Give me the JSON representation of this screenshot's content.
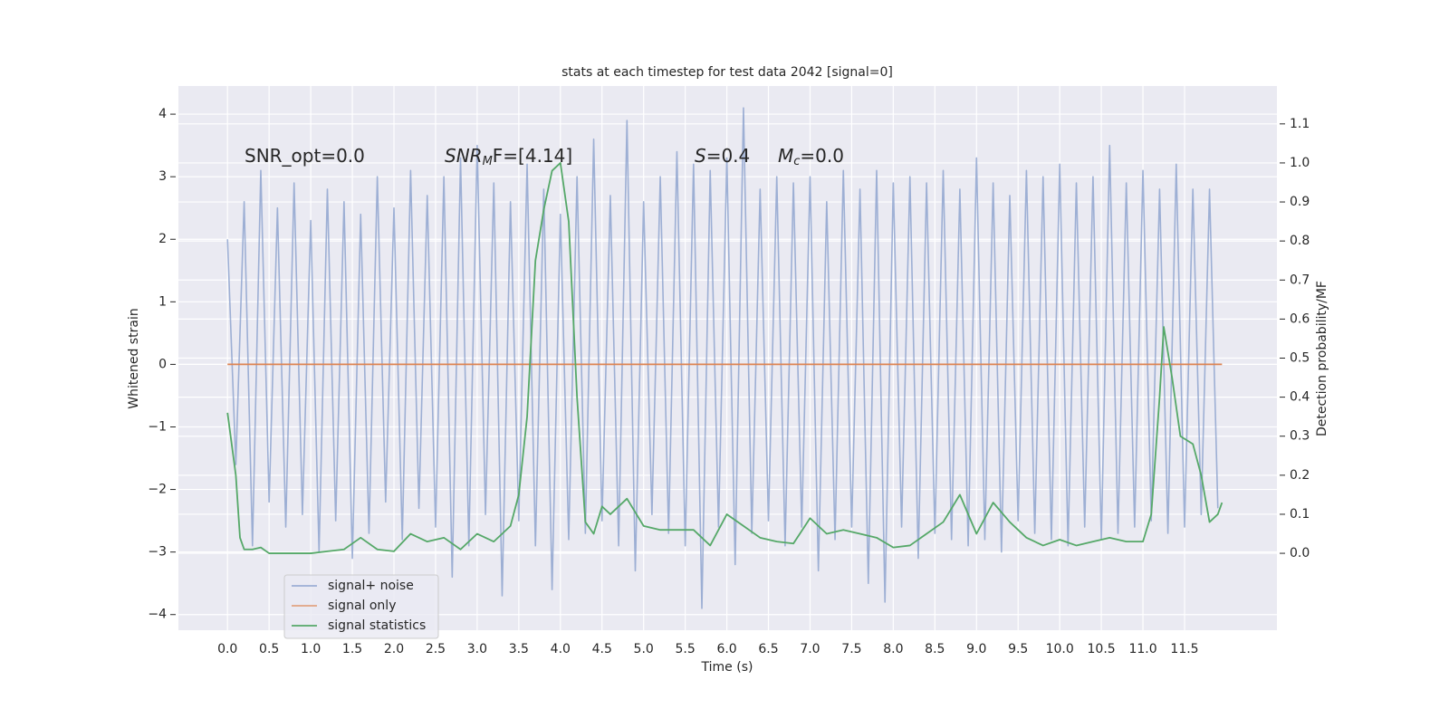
{
  "chart_data": {
    "type": "line",
    "title": "stats at each timestep for test data 2042 [signal=0]",
    "x_label": "Time (s)",
    "y_label": "Whitened strain",
    "y2_label": "Detection probability/MF",
    "xlim": [
      -0.59,
      12.61
    ],
    "ylim": [
      -4.25,
      4.45
    ],
    "y2lim": [
      -0.197,
      1.197
    ],
    "grid": true,
    "legend": "lower left",
    "xticks": [
      {
        "value": 0,
        "label": "0.0"
      },
      0.5,
      {
        "value": 1,
        "label": "1.0"
      },
      1.5,
      {
        "value": 2,
        "label": "2.0"
      },
      2.5,
      {
        "value": 3,
        "label": "3.0"
      },
      3.5,
      {
        "value": 4,
        "label": "4.0"
      },
      4.5,
      {
        "value": 5,
        "label": "5.0"
      },
      5.5,
      {
        "value": 6,
        "label": "6.0"
      },
      6.5,
      {
        "value": 7,
        "label": "7.0"
      },
      7.5,
      {
        "value": 8,
        "label": "8.0"
      },
      8.5,
      {
        "value": 9,
        "label": "9.0"
      },
      9.5,
      {
        "value": 10,
        "label": "10.0"
      },
      10.5,
      {
        "value": 11,
        "label": "11.0"
      },
      11.5
    ],
    "yticks": [
      {
        "value": -4,
        "label": "−4"
      },
      {
        "value": -3,
        "label": "−3"
      },
      {
        "value": -2,
        "label": "−2"
      },
      {
        "value": -1,
        "label": "−1"
      },
      0,
      1,
      2,
      3,
      4
    ],
    "y2ticks": [
      {
        "value": 0,
        "label": "0.0"
      },
      0.1,
      0.2,
      0.3,
      0.4,
      0.5,
      0.6,
      0.7,
      0.8,
      0.9,
      {
        "value": 1,
        "label": "1.0"
      },
      1.1
    ],
    "annotations": [
      [
        "SNR_opt=0.0"
      ],
      [
        "SNR",
        "M",
        "F=[4.14]"
      ],
      [
        "S",
        "=0.4"
      ],
      [
        "M",
        "c",
        "=0.0"
      ]
    ],
    "series": [
      {
        "name": "signal+ noise",
        "color": "#8fa5cf",
        "x": [
          0,
          0.1,
          0.2,
          0.3,
          0.4,
          0.5,
          0.6,
          0.7,
          0.8,
          0.9,
          1,
          1.1,
          1.2,
          1.3,
          1.4,
          1.5,
          1.6,
          1.7,
          1.8,
          1.9,
          2,
          2.1,
          2.2,
          2.3,
          2.4,
          2.5,
          2.6,
          2.7,
          2.8,
          2.9,
          3,
          3.1,
          3.2,
          3.3,
          3.4,
          3.5,
          3.6,
          3.7,
          3.8,
          3.9,
          4,
          4.1,
          4.2,
          4.3,
          4.4,
          4.5,
          4.6,
          4.7,
          4.8,
          4.9,
          5,
          5.1,
          5.2,
          5.3,
          5.4,
          5.5,
          5.6,
          5.7,
          5.8,
          5.9,
          6,
          6.1,
          6.2,
          6.3,
          6.4,
          6.5,
          6.6,
          6.7,
          6.8,
          6.9,
          7,
          7.1,
          7.2,
          7.3,
          7.4,
          7.5,
          7.6,
          7.7,
          7.8,
          7.9,
          8,
          8.1,
          8.2,
          8.3,
          8.4,
          8.5,
          8.6,
          8.7,
          8.8,
          8.9,
          9,
          9.1,
          9.2,
          9.3,
          9.4,
          9.5,
          9.6,
          9.7,
          9.8,
          9.9,
          10,
          10.1,
          10.2,
          10.3,
          10.4,
          10.5,
          10.6,
          10.7,
          10.8,
          10.9,
          11,
          11.1,
          11.2,
          11.3,
          11.4,
          11.5,
          11.6,
          11.7,
          11.8,
          11.9
        ],
        "values": [
          2.0,
          -1.6,
          2.6,
          -2.9,
          3.1,
          -2.2,
          2.5,
          -2.6,
          2.9,
          -2.4,
          2.3,
          -3.0,
          2.8,
          -2.5,
          2.6,
          -3.1,
          2.4,
          -2.7,
          3.0,
          -2.2,
          2.5,
          -2.8,
          3.1,
          -2.3,
          2.7,
          -2.6,
          3.0,
          -3.4,
          3.3,
          -2.9,
          3.5,
          -2.4,
          2.9,
          -3.7,
          2.6,
          -2.5,
          3.2,
          -2.9,
          2.8,
          -3.6,
          2.4,
          -2.8,
          3.0,
          -2.7,
          3.6,
          -2.5,
          2.7,
          -2.9,
          3.9,
          -3.3,
          2.6,
          -2.4,
          3.0,
          -2.7,
          3.4,
          -2.9,
          3.2,
          -3.9,
          3.1,
          -2.6,
          3.3,
          -3.2,
          4.1,
          -2.7,
          2.8,
          -2.5,
          3.0,
          -2.9,
          2.9,
          -2.6,
          3.0,
          -3.3,
          2.6,
          -2.8,
          3.1,
          -2.6,
          2.8,
          -3.5,
          3.1,
          -3.8,
          2.9,
          -2.6,
          3.0,
          -3.1,
          2.9,
          -2.7,
          3.1,
          -2.8,
          2.8,
          -2.9,
          3.3,
          -2.8,
          2.9,
          -3.0,
          2.7,
          -2.5,
          3.1,
          -2.7,
          3.0,
          -2.8,
          3.2,
          -2.9,
          2.9,
          -2.6,
          3.0,
          -2.8,
          3.5,
          -2.7,
          2.9,
          -2.6,
          3.1,
          -2.5,
          2.8,
          -2.7,
          3.2,
          -2.6,
          2.8,
          -2.4,
          2.8,
          -2.3
        ]
      },
      {
        "name": "signal only",
        "color": "#dd8452",
        "x": [
          0,
          11.95
        ],
        "values": [
          0,
          0
        ]
      },
      {
        "name": "signal statistics",
        "color": "#55a868",
        "axis": "y2",
        "x": [
          0,
          0.1,
          0.15,
          0.2,
          0.3,
          0.4,
          0.5,
          0.6,
          0.8,
          1,
          1.2,
          1.4,
          1.6,
          1.8,
          2,
          2.2,
          2.4,
          2.6,
          2.8,
          3,
          3.2,
          3.4,
          3.5,
          3.6,
          3.7,
          3.8,
          3.9,
          4,
          4.1,
          4.2,
          4.3,
          4.4,
          4.5,
          4.6,
          4.8,
          5,
          5.2,
          5.4,
          5.6,
          5.8,
          6,
          6.2,
          6.4,
          6.6,
          6.8,
          7,
          7.2,
          7.4,
          7.6,
          7.8,
          8,
          8.2,
          8.4,
          8.6,
          8.8,
          9,
          9.2,
          9.4,
          9.6,
          9.8,
          10,
          10.2,
          10.4,
          10.6,
          10.8,
          11,
          11.1,
          11.2,
          11.25,
          11.35,
          11.45,
          11.6,
          11.7,
          11.8,
          11.9,
          11.95
        ],
        "values": [
          0.36,
          0.2,
          0.04,
          0.01,
          0.01,
          0.015,
          0.0,
          0.0,
          0.0,
          0.0,
          0.005,
          0.01,
          0.04,
          0.01,
          0.005,
          0.05,
          0.03,
          0.04,
          0.01,
          0.05,
          0.03,
          0.07,
          0.15,
          0.35,
          0.75,
          0.88,
          0.98,
          1.0,
          0.85,
          0.4,
          0.08,
          0.05,
          0.12,
          0.1,
          0.14,
          0.07,
          0.06,
          0.06,
          0.06,
          0.02,
          0.1,
          0.07,
          0.04,
          0.03,
          0.025,
          0.09,
          0.05,
          0.06,
          0.05,
          0.04,
          0.015,
          0.02,
          0.05,
          0.08,
          0.15,
          0.05,
          0.13,
          0.08,
          0.04,
          0.02,
          0.035,
          0.02,
          0.03,
          0.04,
          0.03,
          0.03,
          0.1,
          0.4,
          0.58,
          0.45,
          0.3,
          0.28,
          0.2,
          0.08,
          0.1,
          0.13
        ]
      }
    ]
  }
}
